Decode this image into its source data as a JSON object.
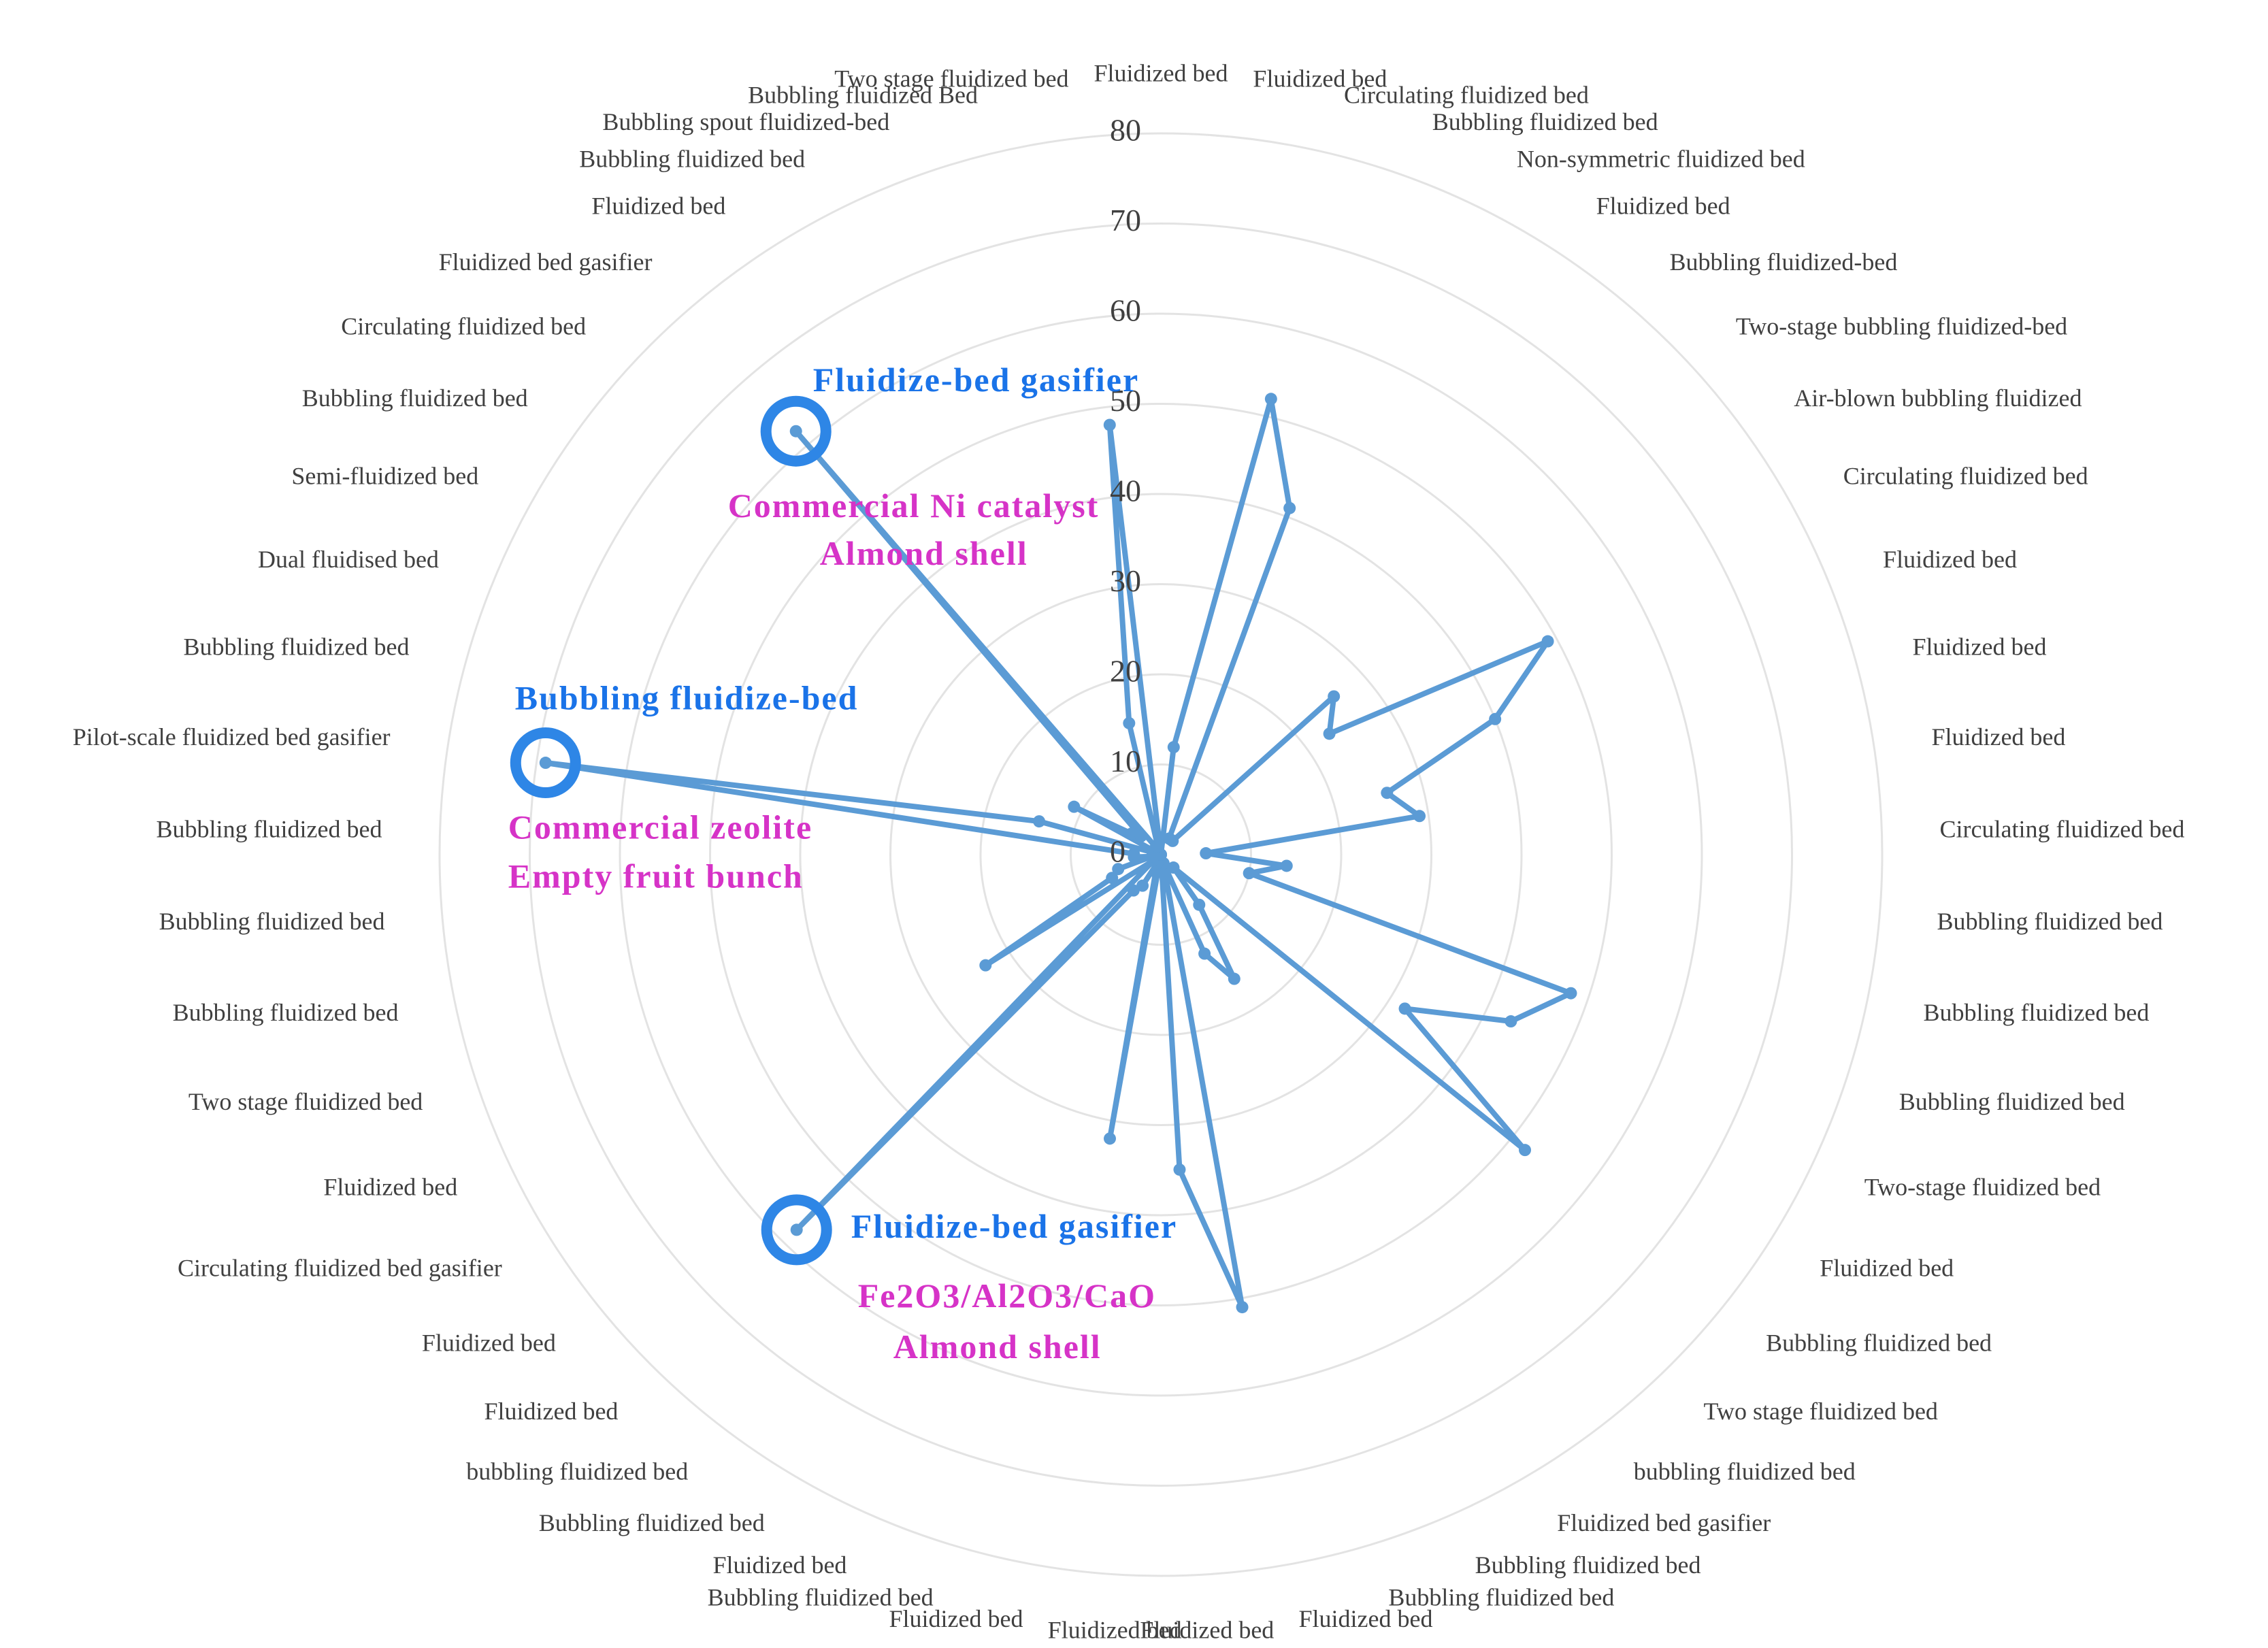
{
  "chart_data": {
    "type": "radar",
    "categories": [
      "Fluidized bed",
      "Fluidized bed",
      "Circulating fluidized bed",
      "Bubbling fluidized bed",
      "Non-symmetric fluidized bed",
      "Fluidized bed",
      "Bubbling fluidized-bed",
      "Two-stage bubbling fluidized-bed",
      "Air-blown bubbling fluidized",
      "Circulating fluidized bed",
      "Fluidized bed",
      "Fluidized bed",
      "Fluidized bed",
      "Circulating fluidized bed",
      "Bubbling fluidized bed",
      "Bubbling fluidized bed",
      "Bubbling fluidized bed",
      "Two-stage fluidized bed",
      "Fluidized bed",
      "Bubbling fluidized bed",
      "Two stage fluidized bed",
      "bubbling fluidized bed",
      "Fluidized bed gasifier",
      "Bubbling fluidized bed",
      "Bubbling fluidized bed",
      "Fluidized bed",
      "Fluidized bed",
      "Fluidized bed",
      "Fluidized bed",
      "Bubbling fluidized bed",
      "Fluidized bed",
      "Bubbling fluidized bed",
      "bubbling fluidized bed",
      "Fluidized bed",
      "Fluidized bed",
      "Circulating fluidized bed gasifier",
      "Fluidized bed",
      "Two stage fluidized bed",
      "Bubbling fluidized bed",
      "Bubbling fluidized bed",
      "Bubbling fluidized bed",
      "Pilot-scale fluidized bed gasifier",
      "Bubbling fluidized bed",
      "Dual fluidised bed",
      "Semi-fluidized bed",
      "Bubbling fluidized bed",
      "Circulating fluidized bed",
      "Fluidized bed gasifier",
      "Fluidized bed",
      "Bubbling fluidized bed",
      "Bubbling spout fluidized-bed",
      "Bubbling fluidized Bed",
      "Two stage fluidized bed"
    ],
    "values": [
      0,
      12,
      52,
      41,
      2,
      2,
      2,
      26,
      23,
      49,
      40,
      26,
      29,
      5,
      14,
      10,
      48,
      43,
      32,
      52,
      2,
      7,
      16,
      12,
      1,
      51,
      35,
      0,
      32,
      2,
      1,
      4,
      5,
      58,
      1,
      23,
      6,
      5,
      1,
      3,
      3,
      69,
      14,
      0,
      11,
      4,
      3,
      62,
      1,
      1,
      1,
      15,
      48
    ],
    "ylim": [
      0,
      80
    ],
    "ticks": [
      "0",
      "10",
      "20",
      "30",
      "40",
      "50",
      "60",
      "70",
      "80"
    ],
    "grid": true,
    "legend": "none",
    "annotations": [
      {
        "point_index": 47,
        "lines": [
          "Fluidize-bed gasifier",
          "Commercial Ni catalyst",
          "Almond shell"
        ]
      },
      {
        "point_index": 41,
        "lines": [
          "Bubbling fluidize-bed",
          "Commercial zeolite",
          "Empty fruit bunch"
        ]
      },
      {
        "point_index": 33,
        "lines": [
          "Fluidize-bed gasifier",
          "Fe2O3/Al2O3/CaO",
          "Almond shell"
        ]
      }
    ]
  },
  "colors": {
    "series": "#5b9bd5",
    "highlight_ring": "#2e86e6",
    "annotation_blue": "#1a73e8",
    "annotation_pink": "#d633c7",
    "grid": "#e3e3e3",
    "label": "#404040"
  }
}
